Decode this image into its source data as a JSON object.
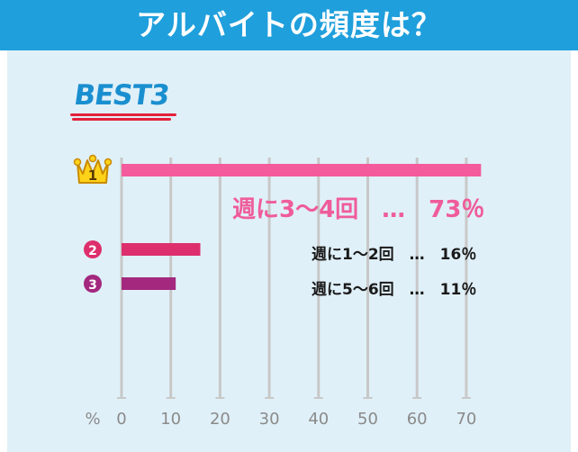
{
  "header": {
    "title": "アルバイトの頻度は？"
  },
  "badge": {
    "text": "BEST3"
  },
  "chart_data": {
    "type": "bar",
    "orientation": "horizontal",
    "categories": [
      "週に3～4回",
      "週に1～2回",
      "週に5～6回"
    ],
    "values": [
      73,
      16,
      11
    ],
    "ranks": [
      "1",
      "2",
      "3"
    ],
    "value_labels": [
      "週に3～4回　…　73％",
      "週に1～2回　…　16％",
      "週に5～6回　…　11％"
    ],
    "xaxis": {
      "unit_label": "%",
      "ticks": [
        0,
        10,
        20,
        30,
        40,
        50,
        60,
        70
      ],
      "range": [
        0,
        74
      ]
    },
    "grid": true,
    "colors": [
      "#f45b9c",
      "#dd2f6c",
      "#a3287e"
    ]
  }
}
